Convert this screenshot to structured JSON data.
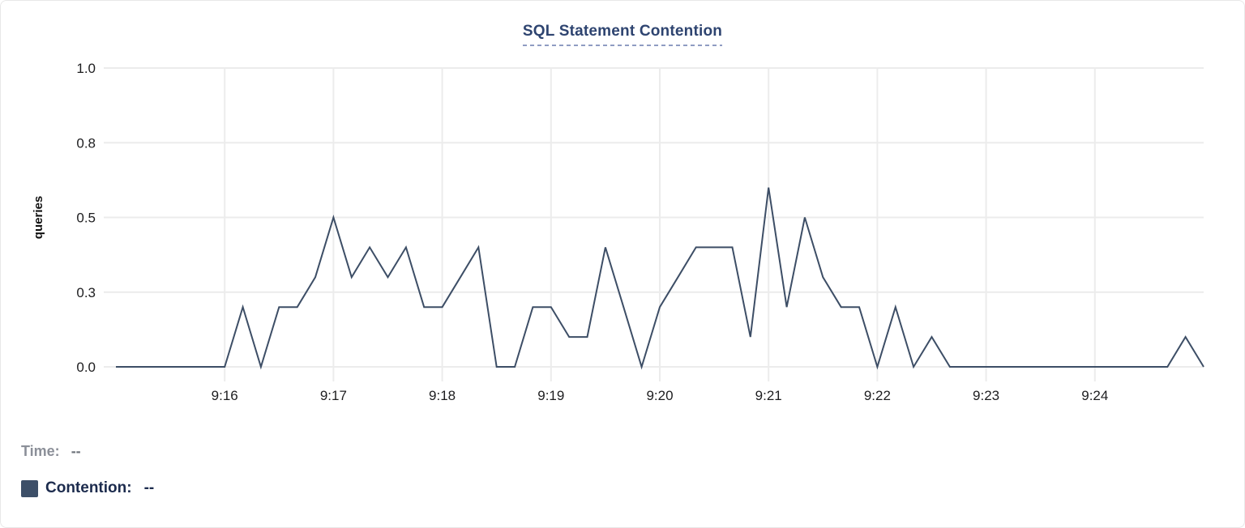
{
  "card": {
    "title": "SQL Statement Contention"
  },
  "legend": {
    "time": {
      "label": "Time:",
      "value": "--"
    },
    "contention": {
      "label": "Contention:",
      "value": "--"
    }
  },
  "colors": {
    "line": "#3d4e66",
    "swatch": "#3d4f68",
    "title_text": "#2e4470",
    "title_underline": "#8f9cc2",
    "grid": "#ececec",
    "tick_text": "#1d1d1f",
    "time_label": "#8b8f98",
    "time_value": "#6f747c",
    "contention_text": "#1c2b4d"
  },
  "chart_data": {
    "type": "line",
    "title": "SQL Statement Contention",
    "xlabel": "",
    "ylabel": "queries",
    "ylim": [
      0,
      1.0
    ],
    "grid": true,
    "legend_position": "bottom-left",
    "y_ticks": [
      {
        "v": 0,
        "label": "0.0"
      },
      {
        "v": 0.25,
        "label": "0.3"
      },
      {
        "v": 0.5,
        "label": "0.5"
      },
      {
        "v": 0.75,
        "label": "0.8"
      },
      {
        "v": 1.0,
        "label": "1.0"
      }
    ],
    "x_ticks": [
      {
        "t": 60,
        "label": "9:16"
      },
      {
        "t": 120,
        "label": "9:17"
      },
      {
        "t": 180,
        "label": "9:18"
      },
      {
        "t": 240,
        "label": "9:19"
      },
      {
        "t": 300,
        "label": "9:20"
      },
      {
        "t": 360,
        "label": "9:21"
      },
      {
        "t": 420,
        "label": "9:22"
      },
      {
        "t": 480,
        "label": "9:23"
      },
      {
        "t": 540,
        "label": "9:24"
      }
    ],
    "x_domain_seconds": [
      0,
      600
    ],
    "x_note": "t = seconds after 9:15; samples every 10s",
    "series": [
      {
        "name": "Contention",
        "color": "#3d4e66",
        "points": [
          [
            0,
            0
          ],
          [
            10,
            0
          ],
          [
            20,
            0
          ],
          [
            30,
            0
          ],
          [
            40,
            0
          ],
          [
            50,
            0
          ],
          [
            60,
            0
          ],
          [
            70,
            0.2
          ],
          [
            80,
            0
          ],
          [
            90,
            0.2
          ],
          [
            100,
            0.2
          ],
          [
            110,
            0.3
          ],
          [
            120,
            0.5
          ],
          [
            130,
            0.3
          ],
          [
            140,
            0.4
          ],
          [
            150,
            0.3
          ],
          [
            160,
            0.4
          ],
          [
            170,
            0.2
          ],
          [
            180,
            0.2
          ],
          [
            190,
            0.3
          ],
          [
            200,
            0.4
          ],
          [
            210,
            0
          ],
          [
            220,
            0
          ],
          [
            230,
            0.2
          ],
          [
            240,
            0.2
          ],
          [
            250,
            0.1
          ],
          [
            260,
            0.1
          ],
          [
            270,
            0.4
          ],
          [
            280,
            0.2
          ],
          [
            290,
            0
          ],
          [
            300,
            0.2
          ],
          [
            310,
            0.3
          ],
          [
            320,
            0.4
          ],
          [
            330,
            0.4
          ],
          [
            340,
            0.4
          ],
          [
            350,
            0.1
          ],
          [
            360,
            0.6
          ],
          [
            370,
            0.2
          ],
          [
            380,
            0.5
          ],
          [
            390,
            0.3
          ],
          [
            400,
            0.2
          ],
          [
            410,
            0.2
          ],
          [
            420,
            0
          ],
          [
            430,
            0.2
          ],
          [
            440,
            0
          ],
          [
            450,
            0.1
          ],
          [
            460,
            0
          ],
          [
            470,
            0
          ],
          [
            480,
            0
          ],
          [
            490,
            0
          ],
          [
            500,
            0
          ],
          [
            510,
            0
          ],
          [
            520,
            0
          ],
          [
            530,
            0
          ],
          [
            540,
            0
          ],
          [
            550,
            0
          ],
          [
            560,
            0
          ],
          [
            570,
            0
          ],
          [
            580,
            0
          ],
          [
            590,
            0.1
          ],
          [
            600,
            0
          ]
        ]
      }
    ]
  }
}
